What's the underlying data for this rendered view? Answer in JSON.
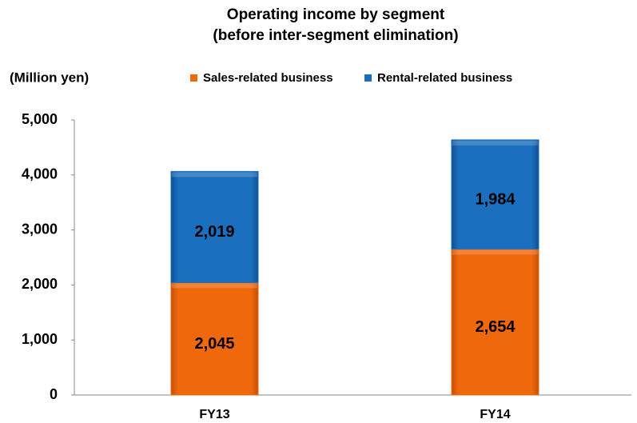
{
  "chart_data": {
    "type": "stacked_bar",
    "title": "Operating income by segment",
    "subtitle": "(before inter-segment elimination)",
    "y_axis_label": "(Million yen)",
    "categories": [
      "FY13",
      "FY14"
    ],
    "series": [
      {
        "name": "Sales-related business",
        "color": "#f0680c",
        "values": [
          2045,
          2654
        ],
        "value_labels": [
          "2,045",
          "2,654"
        ]
      },
      {
        "name": "Rental-related business",
        "color": "#1b6fbf",
        "values": [
          2019,
          1984
        ],
        "value_labels": [
          "2,019",
          "1,984"
        ]
      }
    ],
    "ylim": [
      0,
      5000
    ],
    "yticks": [
      0,
      {
        "value": 1000,
        "label": "1,000"
      },
      {
        "value": 2000,
        "label": "2,000"
      },
      {
        "value": 3000,
        "label": "3,000"
      },
      {
        "value": 4000,
        "label": "4,000"
      },
      {
        "value": 5000,
        "label": "5,000"
      }
    ],
    "grid": false
  }
}
